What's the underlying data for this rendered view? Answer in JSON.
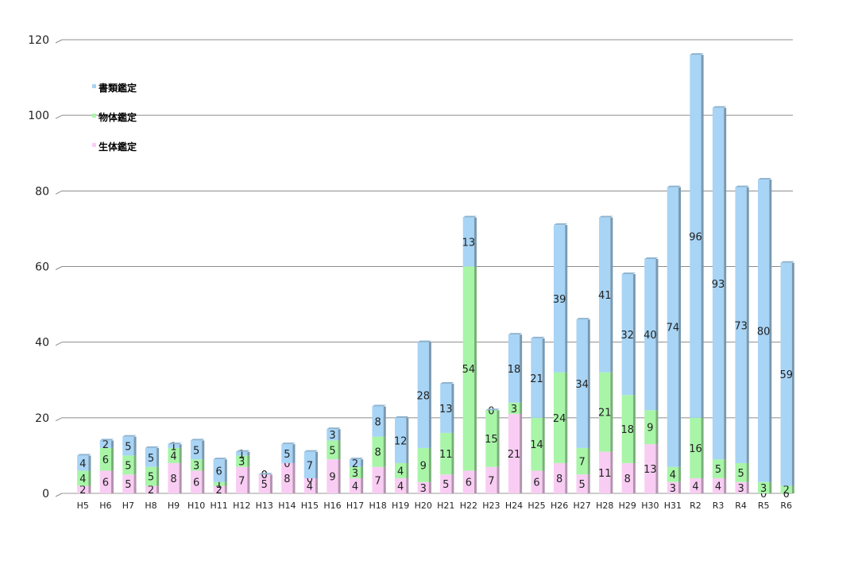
{
  "chart_data": {
    "type": "bar",
    "stacked": true,
    "categories": [
      "H5",
      "H6",
      "H7",
      "H8",
      "H9",
      "H10",
      "H11",
      "H12",
      "H13",
      "H14",
      "H15",
      "H16",
      "H17",
      "H18",
      "H19",
      "H20",
      "H21",
      "H22",
      "H23",
      "H24",
      "H25",
      "H26",
      "H27",
      "H28",
      "H29",
      "H30",
      "H31",
      "R2",
      "R3",
      "R4",
      "R5",
      "R6"
    ],
    "series": [
      {
        "name": "生体鑑定",
        "color": "#f9cdf3",
        "values": [
          2,
          6,
          5,
          2,
          8,
          6,
          2,
          7,
          5,
          8,
          4,
          9,
          4,
          7,
          4,
          3,
          5,
          6,
          7,
          21,
          6,
          8,
          5,
          11,
          8,
          13,
          3,
          4,
          4,
          3,
          0,
          0
        ]
      },
      {
        "name": "物体鑑定",
        "color": "#a8f5a8",
        "values": [
          4,
          6,
          5,
          5,
          4,
          3,
          1,
          3,
          0,
          0,
          0,
          5,
          3,
          8,
          4,
          9,
          11,
          54,
          15,
          3,
          14,
          24,
          7,
          21,
          18,
          9,
          4,
          16,
          5,
          5,
          3,
          2
        ]
      },
      {
        "name": "書類鑑定",
        "color": "#a8d4f5",
        "values": [
          4,
          2,
          5,
          5,
          1,
          5,
          6,
          1,
          0,
          5,
          7,
          3,
          2,
          8,
          12,
          28,
          13,
          13,
          0,
          18,
          21,
          39,
          34,
          41,
          32,
          40,
          74,
          96,
          93,
          73,
          80,
          59
        ]
      }
    ],
    "legend_order": [
      "書類鑑定",
      "物体鑑定",
      "生体鑑定"
    ],
    "legend_position": "top-left",
    "ylim": [
      0,
      120
    ],
    "yticks": [
      0,
      20,
      40,
      60,
      80,
      100,
      120
    ],
    "grid": true
  }
}
